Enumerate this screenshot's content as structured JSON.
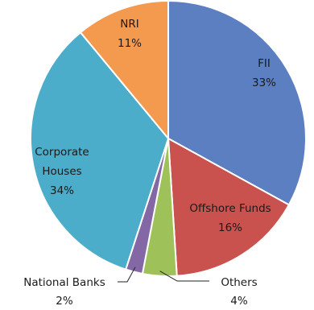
{
  "chart_data": {
    "type": "pie",
    "title": "",
    "series": [
      {
        "values": [
          33,
          16,
          4,
          2,
          34,
          11
        ]
      }
    ],
    "slices": [
      {
        "label": "FII",
        "value": 33,
        "pct_text": "33%",
        "color": "#5b7fc1",
        "edge": "#3f6099"
      },
      {
        "label": "Offshore Funds",
        "value": 16,
        "pct_text": "16%",
        "color": "#c9524e",
        "edge": "#9c3431"
      },
      {
        "label": "Others",
        "value": 4,
        "pct_text": "4%",
        "color": "#9fc15a",
        "edge": "#769436"
      },
      {
        "label": "National Banks",
        "value": 2,
        "pct_text": "2%",
        "color": "#8468a6",
        "edge": "#5e4680"
      },
      {
        "label": "Corporate Houses",
        "value": 34,
        "pct_text": "34%",
        "color": "#4badc9",
        "edge": "#2f8aa5"
      },
      {
        "label": "NRI",
        "value": 11,
        "pct_text": "11%",
        "color": "#f39a4f",
        "edge": "#c87428"
      }
    ],
    "start": "12 o'clock",
    "direction": "clockwise",
    "legend": "none (labels on and beside slices)"
  }
}
